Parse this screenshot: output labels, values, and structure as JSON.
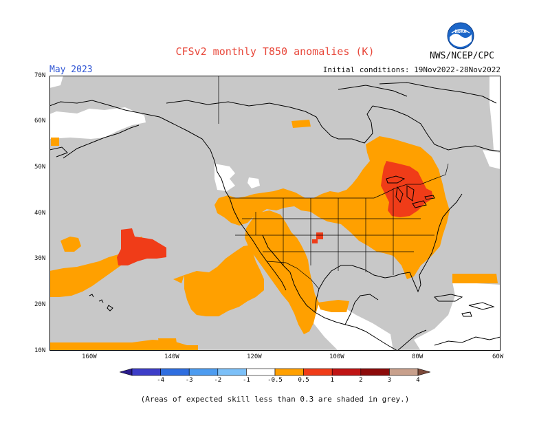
{
  "header": {
    "title": "CFSv2 monthly T850 anomalies (K)",
    "period": "May 2023",
    "agency": "NWS/NCEP/CPC",
    "initial_conditions": "Initial conditions: 19Nov2022-28Nov2022"
  },
  "logo": {
    "text": "NOAA",
    "icon": "noaa-logo-icon"
  },
  "map": {
    "region": "North America and eastern North Pacific",
    "lat_labels": [
      "70N",
      "60N",
      "50N",
      "40N",
      "30N",
      "20N",
      "10N"
    ],
    "lon_labels": [
      "160W",
      "140W",
      "120W",
      "100W",
      "80W",
      "60W"
    ],
    "colors": {
      "skill_mask": "#c8c8c8",
      "weak_warm": "#ffa000",
      "warm": "#f03c18",
      "land_line": "#000000"
    }
  },
  "legend": {
    "labels": [
      "-4",
      "-3",
      "-2",
      "-1",
      "-0.5",
      "0.5",
      "1",
      "2",
      "3",
      "4"
    ],
    "colors": [
      "#2a1c8c",
      "#3d3dc8",
      "#2f6ee0",
      "#4d9cf0",
      "#7cc0f8",
      "#ffffff",
      "#ffa000",
      "#f03c18",
      "#c01414",
      "#8c0a0a",
      "#c8a08c",
      "#7c4a3a"
    ]
  },
  "footnote": "(Areas of expected skill less than 0.3 are shaded in grey.)"
}
